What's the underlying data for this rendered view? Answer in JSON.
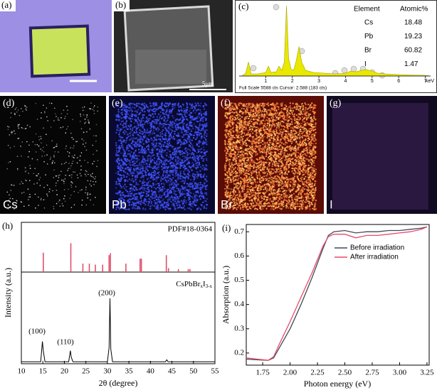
{
  "figure": {
    "a": {
      "label": "(a)"
    },
    "b": {
      "label": "(b)",
      "scale_bar": "5μm"
    },
    "c": {
      "label": "(c)",
      "table": {
        "header": [
          "Element",
          "Atomic%"
        ],
        "rows": [
          [
            "Cs",
            18.48
          ],
          [
            "Pb",
            19.23
          ],
          [
            "Br",
            60.82
          ],
          [
            "I",
            1.47
          ]
        ]
      },
      "footer": "Full Scale 5588 cts Cursor: 2.588 (183 cts)"
    },
    "maps": [
      {
        "label": "(d)",
        "element": "Cs",
        "color": "#e8e8e8"
      },
      {
        "label": "(e)",
        "element": "Pb",
        "color": "#4054ff"
      },
      {
        "label": "(f)",
        "element": "Br",
        "color": "#ff8a40"
      },
      {
        "label": "(g)",
        "element": "I",
        "color": "#2a1840"
      }
    ]
  },
  "chart_data": [
    {
      "type": "spectrum",
      "xlabel": "keV",
      "color": "#e8e800",
      "xlim": [
        0,
        7.2
      ],
      "ylim": [
        0,
        100
      ],
      "xticks": [
        1,
        2,
        3,
        4,
        5,
        6,
        7
      ],
      "x": [
        0.1,
        0.25,
        0.35,
        0.45,
        0.7,
        1.0,
        1.1,
        1.2,
        1.4,
        1.5,
        1.6,
        1.7,
        1.78,
        1.86,
        1.95,
        2.05,
        2.15,
        2.25,
        2.35,
        2.5,
        2.8,
        3.2,
        3.6,
        4.0,
        4.2,
        4.4,
        4.6,
        4.8,
        5.0,
        5.2,
        5.5,
        6.0,
        7.0,
        7.2
      ],
      "values": [
        0,
        4,
        20,
        3,
        3,
        5,
        14,
        5,
        6,
        14,
        8,
        20,
        100,
        25,
        10,
        8,
        22,
        42,
        20,
        8,
        5,
        4,
        3,
        4,
        7,
        6,
        8,
        9,
        7,
        4,
        3,
        2,
        1,
        0
      ]
    },
    {
      "type": "xrd",
      "label": "(h)",
      "xlabel": "2θ (degree)",
      "ylabel": "Intensity (a.u.)",
      "xlim": [
        10,
        55
      ],
      "xticks": [
        10,
        15,
        20,
        25,
        30,
        35,
        40,
        45,
        50,
        55
      ],
      "annotations": [
        "(100)",
        "(110)",
        "(200)"
      ],
      "series": [
        {
          "name": "PDF#18-0364",
          "color": "#e0506a",
          "ylim": [
            0,
            100
          ],
          "x": [
            15.1,
            21.5,
            24.3,
            25.8,
            27.2,
            28.9,
            30.4,
            30.7,
            34.3,
            37.6,
            37.9,
            43.7,
            44.2,
            46.5,
            48.8,
            49.2
          ],
          "values": [
            39,
            58,
            17,
            17,
            15,
            15,
            34,
            38,
            17,
            27,
            27,
            34,
            8,
            6,
            6,
            6
          ]
        },
        {
          "name": [
            "CsPbBr",
            "x",
            "I",
            "3-x"
          ],
          "color": "#000000",
          "ylim": [
            0,
            140
          ],
          "x": [
            10,
            14.5,
            14.9,
            15.1,
            15.5,
            21,
            21.4,
            21.6,
            22,
            30,
            30.4,
            30.6,
            30.8,
            31.2,
            43.5,
            43.8,
            44.1,
            55
          ],
          "values": [
            3,
            3,
            34,
            20,
            3,
            3,
            20,
            10,
            3,
            3,
            25,
            100,
            22,
            3,
            3,
            6,
            3,
            3
          ]
        }
      ]
    },
    {
      "type": "line",
      "label": "(i)",
      "xlabel": "Photon energy (eV)",
      "ylabel": "Absorption (a.u.)",
      "xlim": [
        1.6,
        3.27
      ],
      "ylim": [
        0.15,
        0.73
      ],
      "xticks": [
        {
          "value": 1.75,
          "label": "1.75"
        },
        {
          "value": 2,
          "label": "2.00"
        },
        {
          "value": 2.25,
          "label": "2.25"
        },
        {
          "value": 2.5,
          "label": "2.50"
        },
        {
          "value": 2.75,
          "label": "2.75"
        },
        {
          "value": 3,
          "label": "3.00"
        },
        {
          "value": 3.25,
          "label": "3.25"
        }
      ],
      "yticks": [
        0.2,
        0.3,
        0.4,
        0.5,
        0.6,
        0.7
      ],
      "x": [
        1.6,
        1.7,
        1.8,
        1.85,
        1.9,
        2.0,
        2.1,
        2.2,
        2.3,
        2.35,
        2.4,
        2.5,
        2.6,
        2.7,
        2.8,
        2.9,
        3.0,
        3.1,
        3.2,
        3.25
      ],
      "series": [
        {
          "name": "Before irradiation",
          "color": "#404a58",
          "values": [
            0.175,
            0.172,
            0.17,
            0.18,
            0.22,
            0.3,
            0.4,
            0.51,
            0.63,
            0.685,
            0.7,
            0.705,
            0.695,
            0.7,
            0.7,
            0.705,
            0.705,
            0.71,
            0.715,
            0.72
          ]
        },
        {
          "name": "After irradiation",
          "color": "#e84a6a",
          "values": [
            0.18,
            0.175,
            0.17,
            0.185,
            0.235,
            0.33,
            0.43,
            0.53,
            0.64,
            0.68,
            0.69,
            0.69,
            0.675,
            0.685,
            0.685,
            0.69,
            0.695,
            0.7,
            0.71,
            0.72
          ]
        }
      ]
    }
  ]
}
